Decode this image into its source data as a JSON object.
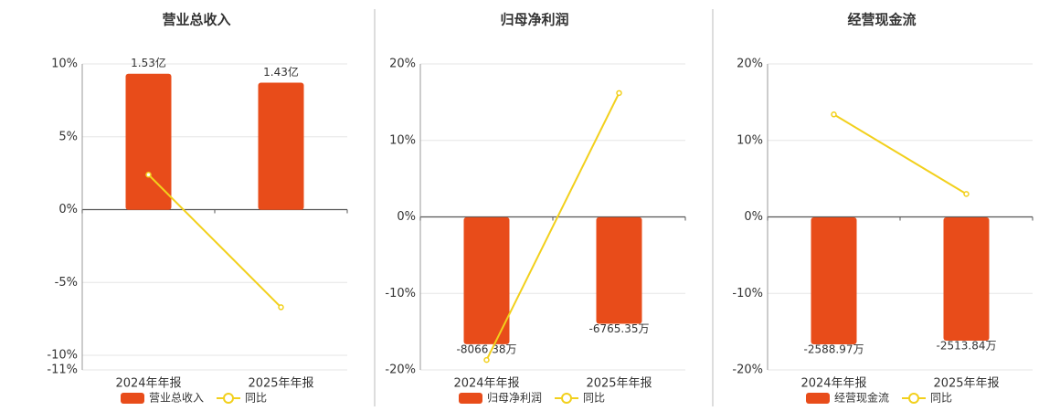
{
  "chart_data": [
    {
      "type": "bar-line",
      "title": "营业总收入",
      "categories": [
        "2024年年报",
        "2025年年报"
      ],
      "ylim": [
        -11,
        10
      ],
      "yticks": [
        {
          "value": 10,
          "label": "10%"
        },
        {
          "value": 5,
          "label": "5%"
        },
        {
          "value": 0,
          "label": "0%"
        },
        {
          "value": -5,
          "label": "-5%"
        },
        {
          "value": -10,
          "label": "-10%"
        },
        {
          "value": -11,
          "label": "-11%"
        }
      ],
      "y2lim": [
        -1.8,
        1.64
      ],
      "series": [
        {
          "name": "营业总收入",
          "type": "bar",
          "axis": "y2",
          "color": "#e84c1a",
          "values": [
            1.53,
            1.43
          ],
          "value_labels": [
            "1.53亿",
            "1.43亿"
          ]
        },
        {
          "name": "同比",
          "type": "line",
          "color": "#f2d01c",
          "values": [
            2.4,
            -6.7
          ]
        }
      ],
      "grid": true
    },
    {
      "type": "bar-line",
      "title": "归母净利润",
      "categories": [
        "2024年年报",
        "2025年年报"
      ],
      "ylim": [
        -20,
        20
      ],
      "yticks": [
        {
          "value": 20,
          "label": "20%"
        },
        {
          "value": 10,
          "label": "10%"
        },
        {
          "value": 0,
          "label": "0%"
        },
        {
          "value": -10,
          "label": "-10%"
        },
        {
          "value": -20,
          "label": "-20%"
        }
      ],
      "y2lim": [
        -9700,
        9750
      ],
      "series": [
        {
          "name": "归母净利润",
          "type": "bar",
          "axis": "y2",
          "color": "#e84c1a",
          "values": [
            -8066.38,
            -6765.35
          ],
          "value_labels": [
            "-8066.38万",
            "-6765.35万"
          ]
        },
        {
          "name": "同比",
          "type": "line",
          "color": "#f2d01c",
          "values": [
            -18.7,
            16.2
          ]
        }
      ],
      "grid": true
    },
    {
      "type": "bar-line",
      "title": "经营现金流",
      "categories": [
        "2024年年报",
        "2025年年报"
      ],
      "ylim": [
        -20,
        20
      ],
      "yticks": [
        {
          "value": 20,
          "label": "20%"
        },
        {
          "value": 10,
          "label": "10%"
        },
        {
          "value": 0,
          "label": "0%"
        },
        {
          "value": -10,
          "label": "-10%"
        },
        {
          "value": -20,
          "label": "-20%"
        }
      ],
      "y2lim": [
        -3110,
        3130
      ],
      "series": [
        {
          "name": "经营现金流",
          "type": "bar",
          "axis": "y2",
          "color": "#e84c1a",
          "values": [
            -2588.97,
            -2513.84
          ],
          "value_labels": [
            "-2588.97万",
            "-2513.84万"
          ]
        },
        {
          "name": "同比",
          "type": "line",
          "color": "#f2d01c",
          "values": [
            13.4,
            3.0
          ]
        }
      ],
      "grid": true
    }
  ]
}
